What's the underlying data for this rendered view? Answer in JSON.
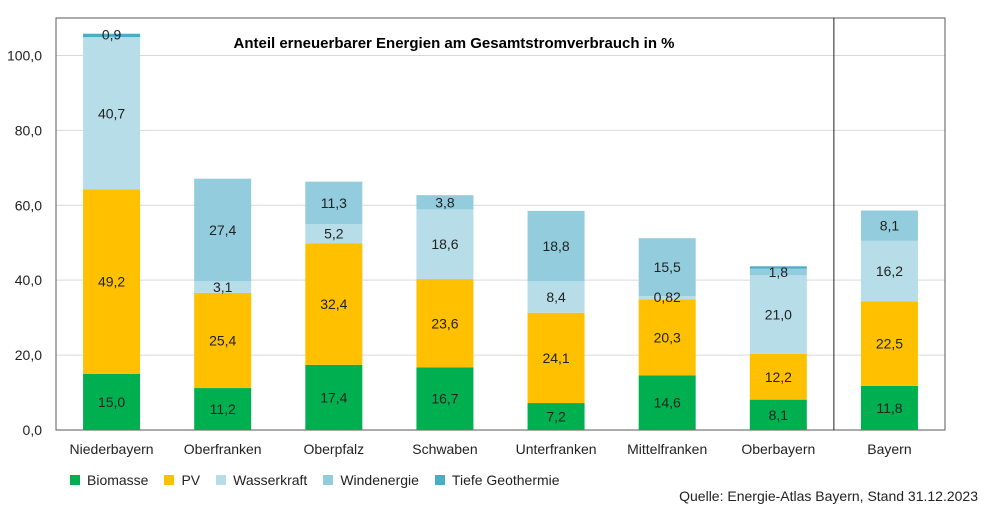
{
  "chart_data": {
    "type": "bar",
    "stacked": true,
    "title": "Anteil erneuerbarer Energien am Gesamtstromverbrauch in %",
    "categories": [
      "Niederbayern",
      "Oberfranken",
      "Oberpfalz",
      "Schwaben",
      "Unterfranken",
      "Mittelfranken",
      "Oberbayern",
      "Bayern"
    ],
    "series": [
      {
        "name": "Biomasse",
        "color": "#00b050",
        "values": [
          15.0,
          11.2,
          17.4,
          16.7,
          7.2,
          14.6,
          8.1,
          11.8
        ],
        "labels": [
          "15,0",
          "11,2",
          "17,4",
          "16,7",
          "7,2",
          "14,6",
          "8,1",
          "11,8"
        ]
      },
      {
        "name": "PV",
        "color": "#ffc000",
        "values": [
          49.2,
          25.4,
          32.4,
          23.6,
          24.1,
          20.3,
          12.2,
          22.5
        ],
        "labels": [
          "49,2",
          "25,4",
          "32,4",
          "23,6",
          "24,1",
          "20,3",
          "12,2",
          "22,5"
        ]
      },
      {
        "name": "Wasserkraft",
        "color": "#b7dee8",
        "values": [
          40.7,
          3.1,
          5.2,
          18.6,
          8.4,
          0.82,
          21.0,
          16.2
        ],
        "labels": [
          "40,7",
          "3,1",
          "5,2",
          "18,6",
          "8,4",
          "0,82",
          "21,0",
          "16,2"
        ]
      },
      {
        "name": "Windenergie",
        "color": "#93cddd",
        "values": [
          0,
          27.4,
          11.3,
          3.8,
          18.8,
          15.5,
          1.8,
          8.1
        ],
        "labels": [
          "",
          "27,4",
          "11,3",
          "3,8",
          "18,8",
          "15,5",
          "1,8",
          "8,1"
        ]
      },
      {
        "name": "Tiefe Geothermie",
        "color": "#4bacc6",
        "values": [
          0.9,
          0,
          0,
          0,
          0,
          0,
          0.6,
          0
        ],
        "labels": [
          "0,9",
          "",
          "",
          "",
          "",
          "",
          "",
          ""
        ]
      }
    ],
    "ylim": [
      0,
      110
    ],
    "yticks": [
      0,
      20,
      40,
      60,
      80,
      100
    ],
    "ytick_labels": [
      "0,0",
      "20,0",
      "40,0",
      "60,0",
      "80,0",
      "100,0"
    ],
    "grid": true,
    "legend_position": "bottom-left",
    "xlabel": "",
    "ylabel": ""
  },
  "footer": {
    "source": "Quelle: Energie-Atlas Bayern, Stand 31.12.2023"
  }
}
